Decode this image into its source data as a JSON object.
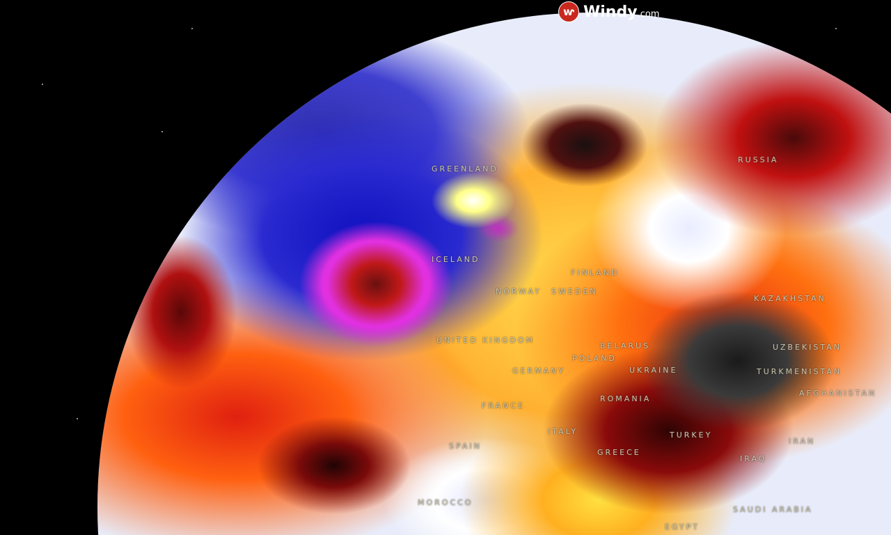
{
  "brand": {
    "name": "Windy",
    "suffix": ".com",
    "icon": "windy-logo-icon",
    "color": "#c8281e"
  },
  "labels": {
    "greenland": "GREENLAND",
    "iceland": "ICELAND",
    "russia": "RUSSIA",
    "finland": "FINLAND",
    "norway": "NORWAY",
    "sweden": "SWEDEN",
    "uk": "UNITED KINGDOM",
    "germany": "GERMANY",
    "poland": "POLAND",
    "belarus": "BELARUS",
    "ukraine": "UKRAINE",
    "romania": "ROMANIA",
    "france": "FRANCE",
    "spain": "SPAIN",
    "italy": "ITALY",
    "greece": "GREECE",
    "turkey": "TURKEY",
    "morocco": "MOROCCO",
    "egypt": "EGYPT",
    "iraq": "IRAQ",
    "iran": "IRAN",
    "saudi": "SAUDI ARABIA",
    "kazakhstan": "KAZAKHSTAN",
    "uzbekistan": "UZBEKISTAN",
    "turkmenistan": "TURKMENISTAN",
    "afghanistan": "AFGHANISTAN"
  }
}
